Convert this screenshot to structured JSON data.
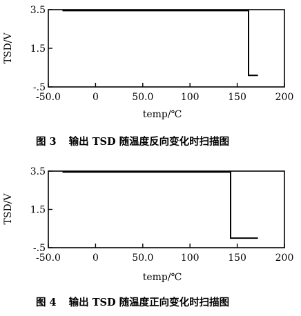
{
  "chart_data": [
    {
      "type": "line",
      "caption_number": "图 3",
      "caption_text": "输出 TSD 随温度反向变化时扫描图",
      "xlabel": "temp/℃",
      "ylabel": "TSD/V",
      "xlim": [
        -50,
        200
      ],
      "ylim": [
        -0.5,
        3.5
      ],
      "x_ticks": [
        -50,
        0,
        50,
        100,
        150,
        200
      ],
      "x_tick_labels": [
        "-50.0",
        "0",
        "50.0",
        "100",
        "150",
        "200"
      ],
      "y_ticks": [
        3.5,
        1.5,
        -0.5
      ],
      "y_tick_labels": [
        "3.5",
        "1.5",
        "-.5"
      ],
      "series": [
        {
          "x": [
            -35,
            162,
            162,
            172
          ],
          "y": [
            3.45,
            3.45,
            0.1,
            0.1
          ]
        }
      ]
    },
    {
      "type": "line",
      "caption_number": "图 4",
      "caption_text": "输出 TSD 随温度正向变化时扫描图",
      "xlabel": "temp/℃",
      "ylabel": "TSD/V",
      "xlim": [
        -50,
        200
      ],
      "ylim": [
        -0.5,
        3.5
      ],
      "x_ticks": [
        -50,
        0,
        50,
        100,
        150,
        200
      ],
      "x_tick_labels": [
        "-50.0",
        "0",
        "50.0",
        "100",
        "150",
        "200"
      ],
      "y_ticks": [
        3.5,
        1.5,
        -0.5
      ],
      "y_tick_labels": [
        "3.5",
        "1.5",
        "-.5"
      ],
      "series": [
        {
          "x": [
            -35,
            143,
            143,
            172
          ],
          "y": [
            3.45,
            3.45,
            0.0,
            0.0
          ]
        }
      ]
    }
  ]
}
